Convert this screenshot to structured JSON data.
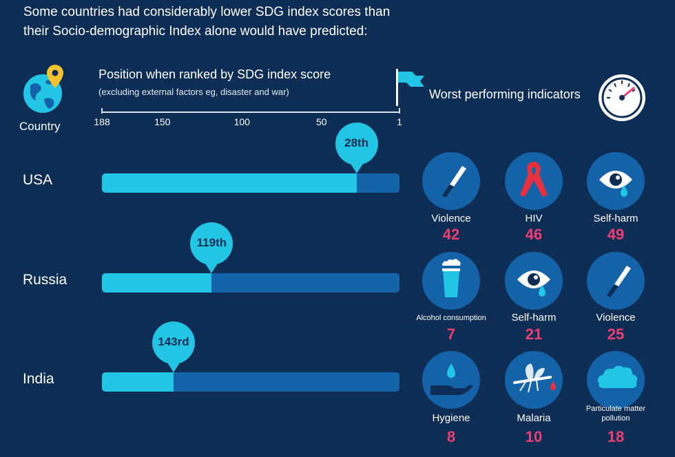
{
  "header": {
    "headline_line1": "Some countries had considerably lower SDG index scores than",
    "headline_line2": "their Socio-demographic Index alone would have predicted:"
  },
  "legend": {
    "country_label": "Country",
    "axis_title": "Position when ranked by SDG index score",
    "axis_subtitle": "(excluding external factors eg, disaster and war)",
    "indicators_title": "Worst performing indicators"
  },
  "colors": {
    "background": "#0d2d55",
    "bar_fill": "#22c5e3",
    "bar_track": "#1463a8",
    "value_text": "#ef3e72"
  },
  "chart_data": {
    "type": "bar",
    "title": "Position when ranked by SDG index score",
    "subtitle": "(excluding external factors eg, disaster and war)",
    "x_ticks": [
      "188",
      "150",
      "100",
      "50",
      "1"
    ],
    "x_tick_values": [
      188,
      150,
      100,
      50,
      1
    ],
    "xlim": [
      188,
      1
    ],
    "categories": [
      "USA",
      "Russia",
      "India"
    ],
    "values": [
      28,
      119,
      143
    ],
    "rank_labels": [
      "28th",
      "119th",
      "143rd"
    ]
  },
  "rows": [
    {
      "country": "USA",
      "indicators": [
        {
          "label": "Violence",
          "value": "42",
          "icon": "knife-icon"
        },
        {
          "label": "HIV",
          "value": "46",
          "icon": "ribbon-icon"
        },
        {
          "label": "Self-harm",
          "value": "49",
          "icon": "crying-eye-icon"
        }
      ]
    },
    {
      "country": "Russia",
      "indicators": [
        {
          "label": "Alcohol consumption",
          "value": "7",
          "icon": "beer-glass-icon"
        },
        {
          "label": "Self-harm",
          "value": "21",
          "icon": "crying-eye-icon"
        },
        {
          "label": "Violence",
          "value": "25",
          "icon": "knife-icon"
        }
      ]
    },
    {
      "country": "India",
      "indicators": [
        {
          "label": "Hygiene",
          "value": "8",
          "icon": "hand-water-drop-icon"
        },
        {
          "label": "Malaria",
          "value": "10",
          "icon": "mosquito-icon"
        },
        {
          "label": "Particulate matter pollution",
          "value": "18",
          "icon": "cloud-icon"
        }
      ]
    }
  ]
}
